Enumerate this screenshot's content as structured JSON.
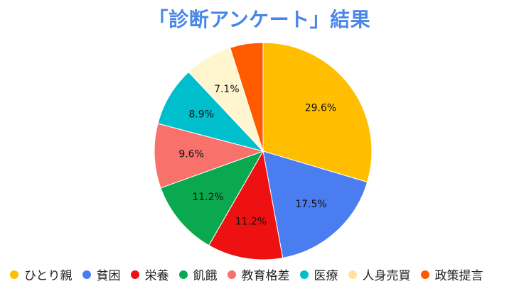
{
  "chart_data": {
    "type": "pie",
    "title": "「診断アンケート」結果",
    "legend_position": "bottom",
    "start_angle": "12 o'clock, clockwise",
    "slices": [
      {
        "name": "ひとり親",
        "value": 29.6,
        "label": "29.6%",
        "color": "#ffbf00"
      },
      {
        "name": "貧困",
        "value": 17.5,
        "label": "17.5%",
        "color": "#4a7ef0"
      },
      {
        "name": "栄養",
        "value": 11.2,
        "label": "11.2%",
        "color": "#ee1111"
      },
      {
        "name": "飢餓",
        "value": 11.2,
        "label": "11.2%",
        "color": "#0aa84f"
      },
      {
        "name": "教育格差",
        "value": 9.6,
        "label": "9.6%",
        "color": "#f8716a"
      },
      {
        "name": "医療",
        "value": 8.9,
        "label": "8.9%",
        "color": "#00bfcc"
      },
      {
        "name": "人身売買",
        "value": 7.1,
        "label": "7.1%",
        "color": "#fff5cf"
      },
      {
        "name": "政策提言",
        "value": 4.9,
        "label": "",
        "color": "#ff5a00"
      }
    ]
  }
}
